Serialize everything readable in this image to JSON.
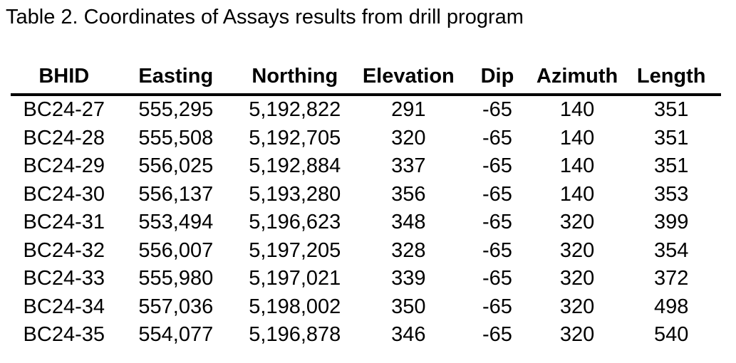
{
  "title": "Table 2. Coordinates of Assays results from drill program",
  "colors": {
    "text": "#000000",
    "background": "#ffffff",
    "header_rule": "#000000"
  },
  "table": {
    "columns": [
      "BHID",
      "Easting",
      "Northing",
      "Elevation",
      "Dip",
      "Azimuth",
      "Length"
    ],
    "column_widths_pct": [
      15,
      16.5,
      17,
      15,
      10,
      12.5,
      14
    ],
    "rows": [
      [
        "BC24-27",
        "555,295",
        "5,192,822",
        "291",
        "-65",
        "140",
        "351"
      ],
      [
        "BC24-28",
        "555,508",
        "5,192,705",
        "320",
        "-65",
        "140",
        "351"
      ],
      [
        "BC24-29",
        "556,025",
        "5,192,884",
        "337",
        "-65",
        "140",
        "351"
      ],
      [
        "BC24-30",
        "556,137",
        "5,193,280",
        "356",
        "-65",
        "140",
        "353"
      ],
      [
        "BC24-31",
        "553,494",
        "5,196,623",
        "348",
        "-65",
        "320",
        "399"
      ],
      [
        "BC24-32",
        "556,007",
        "5,197,205",
        "328",
        "-65",
        "320",
        "354"
      ],
      [
        "BC24-33",
        "555,980",
        "5,197,021",
        "339",
        "-65",
        "320",
        "372"
      ],
      [
        "BC24-34",
        "557,036",
        "5,198,002",
        "350",
        "-65",
        "320",
        "498"
      ],
      [
        "BC24-35",
        "554,077",
        "5,196,878",
        "346",
        "-65",
        "320",
        "540"
      ]
    ]
  }
}
